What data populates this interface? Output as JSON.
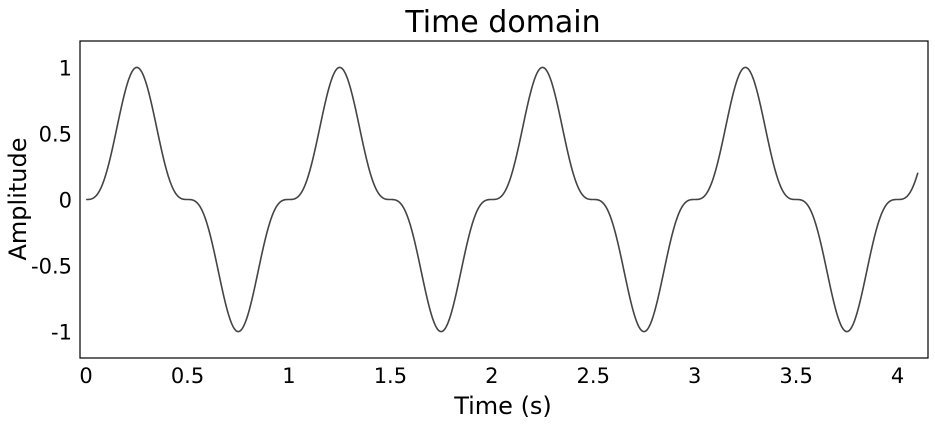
{
  "chart_data": {
    "type": "line",
    "title": "Time domain",
    "xlabel": "Time (s)",
    "ylabel": "Amplitude",
    "xlim": [
      -0.03,
      4.15
    ],
    "ylim": [
      -1.2,
      1.2
    ],
    "grid": false,
    "x_ticks": [
      0,
      0.5,
      1,
      1.5,
      2,
      2.5,
      3,
      3.5,
      4
    ],
    "x_tick_labels": [
      "0",
      "0.5",
      "1",
      "1.5",
      "2",
      "2.5",
      "3",
      "3.5",
      "4"
    ],
    "y_ticks": [
      1,
      0.5,
      0,
      -0.5,
      -1
    ],
    "y_tick_labels": [
      "1",
      "0.5",
      "0",
      "-0.5",
      "-1"
    ],
    "line_color": "#444444",
    "series": [
      {
        "function": "sin^3(2*pi*f*t)",
        "frequency_hz": 1,
        "amplitude": 1,
        "t_range": [
          0,
          4.1
        ]
      }
    ]
  }
}
